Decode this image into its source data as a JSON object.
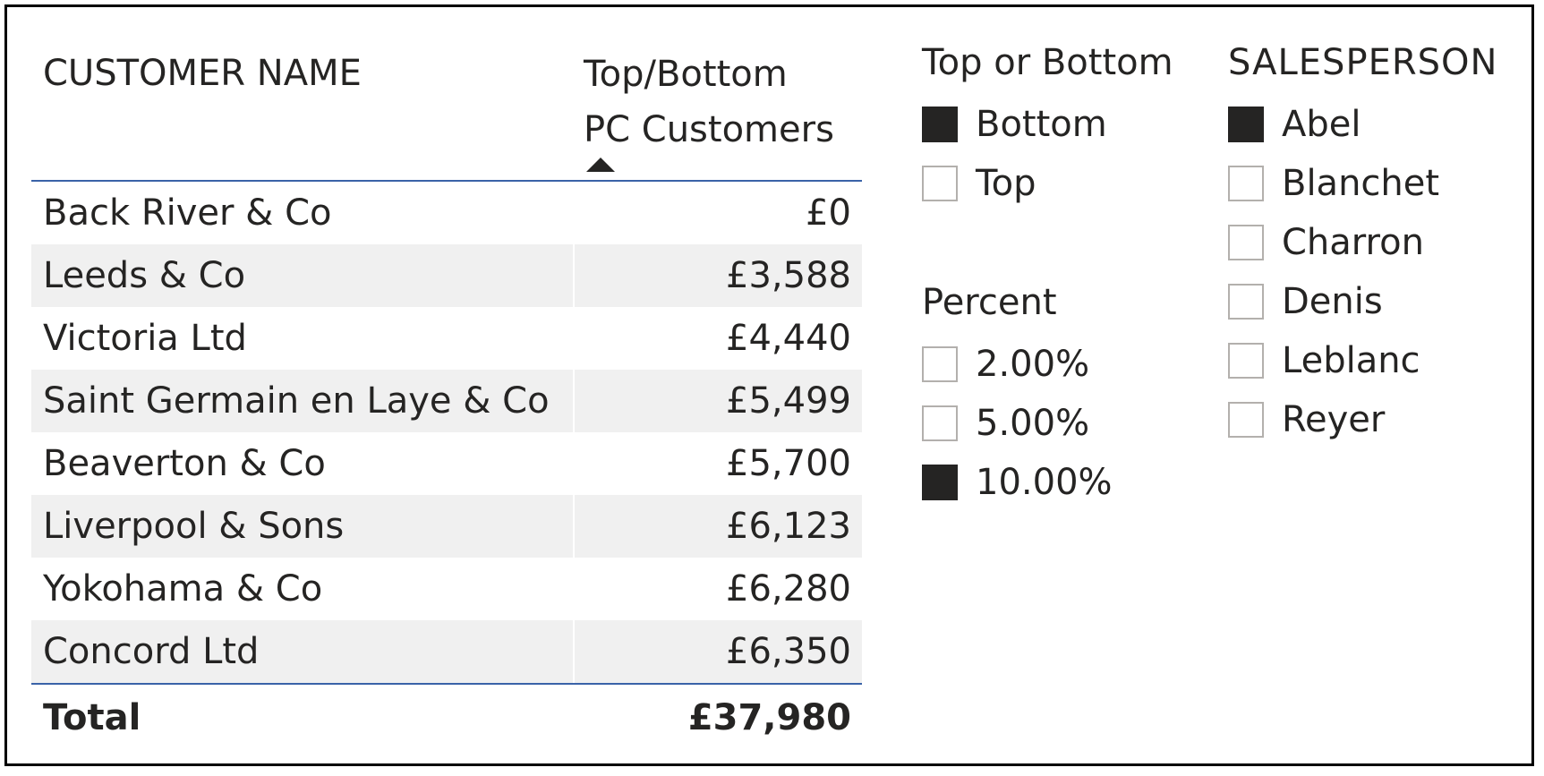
{
  "table": {
    "headers": {
      "name": "CUSTOMER NAME",
      "value_line1": "Top/Bottom",
      "value_line2": "PC Customers"
    },
    "sort_direction": "ascending",
    "rows": [
      {
        "name": "Back River & Co",
        "value": "£0"
      },
      {
        "name": "Leeds & Co",
        "value": "£3,588"
      },
      {
        "name": "Victoria Ltd",
        "value": "£4,440"
      },
      {
        "name": "Saint Germain en Laye & Co",
        "value": "£5,499"
      },
      {
        "name": "Beaverton & Co",
        "value": "£5,700"
      },
      {
        "name": "Liverpool & Sons",
        "value": "£6,123"
      },
      {
        "name": "Yokohama & Co",
        "value": "£6,280"
      },
      {
        "name": "Concord Ltd",
        "value": "£6,350"
      }
    ],
    "total": {
      "label": "Total",
      "value": "£37,980"
    }
  },
  "slicers": {
    "top_or_bottom": {
      "title": "Top or Bottom",
      "items": [
        {
          "label": "Bottom",
          "checked": true
        },
        {
          "label": "Top",
          "checked": false
        }
      ]
    },
    "percent": {
      "title": "Percent",
      "items": [
        {
          "label": "2.00%",
          "checked": false
        },
        {
          "label": "5.00%",
          "checked": false
        },
        {
          "label": "10.00%",
          "checked": true
        }
      ]
    },
    "salesperson": {
      "title": "SALESPERSON",
      "items": [
        {
          "label": "Abel",
          "checked": true
        },
        {
          "label": "Blanchet",
          "checked": false
        },
        {
          "label": "Charron",
          "checked": false
        },
        {
          "label": "Denis",
          "checked": false
        },
        {
          "label": "Leblanc",
          "checked": false
        },
        {
          "label": "Reyer",
          "checked": false
        }
      ]
    }
  },
  "colors": {
    "header_rule": "#3a63a8",
    "row_alt_background": "#f0f0f0",
    "checkbox_checked": "#252423",
    "checkbox_border": "#b3b0ad",
    "text": "#252423"
  }
}
